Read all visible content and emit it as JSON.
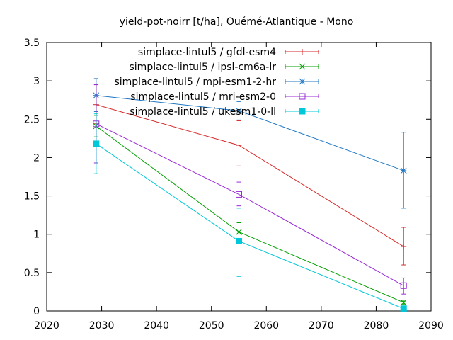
{
  "chart_data": {
    "type": "line",
    "title": "yield-pot-noirr [t/ha], Ouémé-Atlantique - Mono",
    "xlabel": "",
    "ylabel": "",
    "xlim": [
      2020,
      2090
    ],
    "ylim": [
      0,
      3.5
    ],
    "xticks": [
      2020,
      2030,
      2040,
      2050,
      2060,
      2070,
      2080,
      2090
    ],
    "yticks": [
      0,
      0.5,
      1,
      1.5,
      2,
      2.5,
      3,
      3.5
    ],
    "xtick_labels": [
      "2020",
      "2030",
      "2040",
      "2050",
      "2060",
      "2070",
      "2080",
      "2090"
    ],
    "ytick_labels": [
      "0",
      "0.5",
      "1",
      "1.5",
      "2",
      "2.5",
      "3",
      "3.5"
    ],
    "grid": false,
    "legend_position": "top-right",
    "x": [
      2029,
      2055,
      2085
    ],
    "series": [
      {
        "name": "simplace-lintul5 / gfdl-esm4",
        "color": "#d62728",
        "marker": "plus",
        "values": [
          2.69,
          2.16,
          0.84
        ],
        "err_low": [
          2.44,
          1.89,
          0.6
        ],
        "err_high": [
          2.95,
          2.48,
          1.09
        ]
      },
      {
        "name": "simplace-lintul5 / ipsl-cm6a-lr",
        "color": "#00a000",
        "marker": "cross",
        "values": [
          2.41,
          1.03,
          0.11
        ],
        "err_low": [
          2.27,
          0.91,
          0.09
        ],
        "err_high": [
          2.55,
          1.15,
          0.13
        ]
      },
      {
        "name": "simplace-lintul5 / mpi-esm1-2-hr",
        "color": "#1f77c4",
        "marker": "star",
        "values": [
          2.81,
          2.61,
          1.83
        ],
        "err_low": [
          2.6,
          2.49,
          1.34
        ],
        "err_high": [
          3.03,
          2.73,
          2.33
        ]
      },
      {
        "name": "simplace-lintul5 / mri-esm2-0",
        "color": "#9a2bd6",
        "marker": "square",
        "values": [
          2.44,
          1.52,
          0.33
        ],
        "err_low": [
          1.93,
          1.37,
          0.22
        ],
        "err_high": [
          2.95,
          1.68,
          0.43
        ]
      },
      {
        "name": "simplace-lintul5 / ukesm1-0-ll",
        "color": "#00c8d8",
        "marker": "filled-square",
        "values": [
          2.18,
          0.91,
          0.03
        ],
        "err_low": [
          1.79,
          0.45,
          0.0
        ],
        "err_high": [
          2.57,
          1.34,
          0.06
        ]
      }
    ]
  }
}
